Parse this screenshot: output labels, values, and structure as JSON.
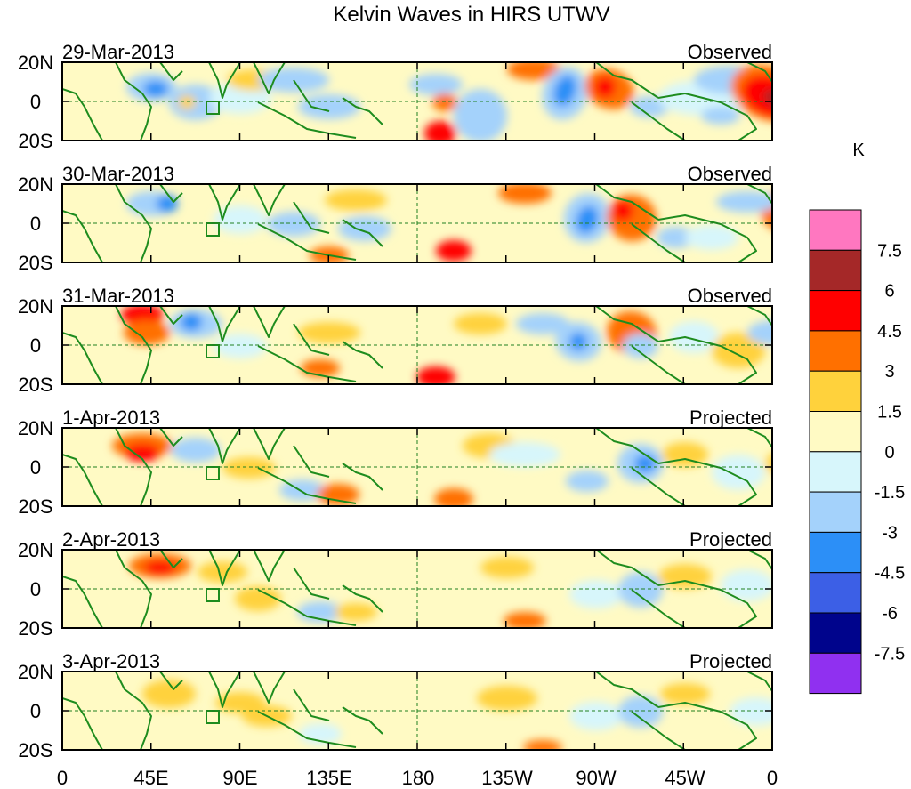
{
  "title": "Kelvin Waves in HIRS UTWV",
  "panels": [
    {
      "date": "29-Mar-2013",
      "status": "Observed"
    },
    {
      "date": "30-Mar-2013",
      "status": "Observed"
    },
    {
      "date": "31-Mar-2013",
      "status": "Observed"
    },
    {
      "date": "1-Apr-2013",
      "status": "Projected"
    },
    {
      "date": "2-Apr-2013",
      "status": "Projected"
    },
    {
      "date": "3-Apr-2013",
      "status": "Projected"
    }
  ],
  "lat_labels": [
    "20N",
    "0",
    "20S"
  ],
  "lon_labels": [
    "0",
    "45E",
    "90E",
    "135E",
    "180",
    "135W",
    "90W",
    "45W",
    "0"
  ],
  "colorbar": {
    "unit": "K",
    "levels": [
      "7.5",
      "6",
      "4.5",
      "3",
      "1.5",
      "0",
      "-1.5",
      "-3",
      "-4.5",
      "-6",
      "-7.5"
    ],
    "colors": [
      "#ff77c0",
      "#a52828",
      "#ff0000",
      "#ff7000",
      "#ffd23c",
      "#fffac4",
      "#d7f6fb",
      "#a4d2fb",
      "#2c8ff7",
      "#3c5fe6",
      "#00048c",
      "#9030f0"
    ]
  },
  "map_colors": {
    "coast": "#1e8c1e",
    "grid": "#208020"
  }
}
